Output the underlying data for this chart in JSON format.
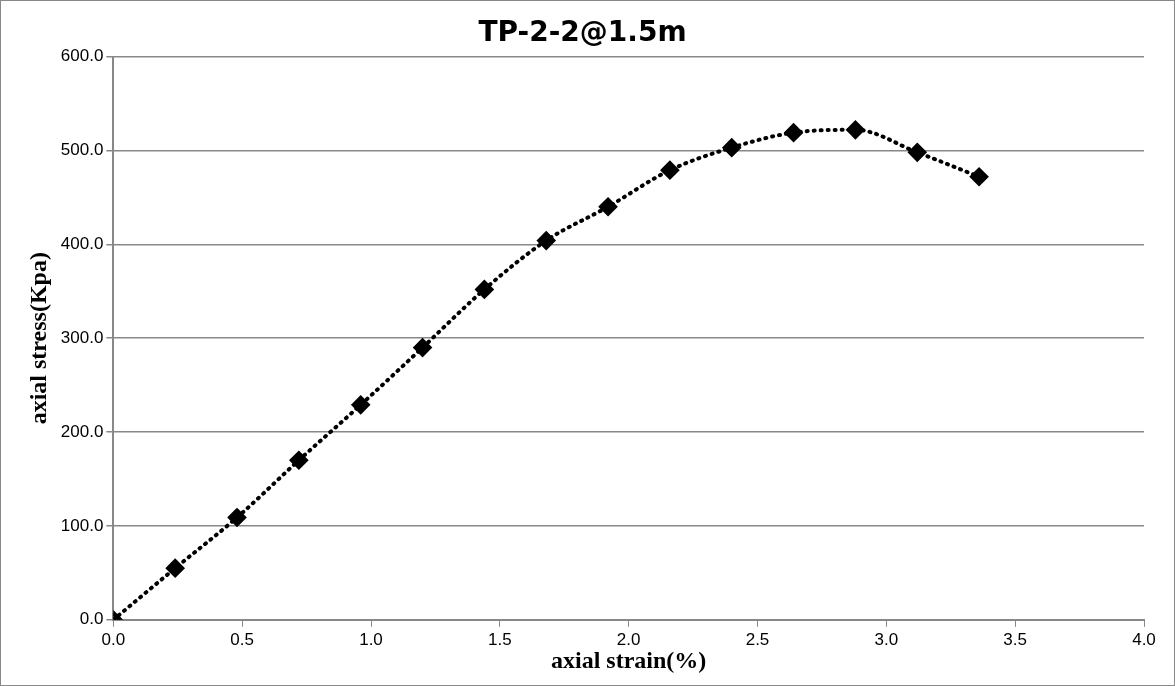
{
  "chart_data": {
    "type": "line",
    "title": "TP-2-2@1.5m",
    "xlabel": "axial strain(%)",
    "ylabel": "axial stress(Kpa)",
    "x": [
      0,
      0.24,
      0.48,
      0.72,
      0.96,
      1.2,
      1.44,
      1.68,
      1.92,
      2.16,
      2.4,
      2.64,
      2.88,
      3.12,
      3.36
    ],
    "series": [
      {
        "color": "#000000",
        "values": [
          0,
          55,
          109,
          170,
          229,
          290,
          352,
          404,
          440,
          479,
          503,
          519,
          522,
          498,
          472
        ]
      }
    ],
    "xlim": [
      0,
      4
    ],
    "xticks": [
      {
        "value": 0,
        "label": "0.0"
      },
      {
        "value": 0.5,
        "label": "0.5"
      },
      {
        "value": 1,
        "label": "1.0"
      },
      {
        "value": 1.5,
        "label": "1.5"
      },
      {
        "value": 2,
        "label": "2.0"
      },
      {
        "value": 2.5,
        "label": "2.5"
      },
      {
        "value": 3,
        "label": "3.0"
      },
      {
        "value": 3.5,
        "label": "3.5"
      },
      {
        "value": 4,
        "label": "4.0"
      }
    ],
    "ylim": [
      0,
      600
    ],
    "yticks": [
      {
        "value": 0,
        "label": "0.0"
      },
      {
        "value": 100,
        "label": "100.0"
      },
      {
        "value": 200,
        "label": "200.0"
      },
      {
        "value": 300,
        "label": "300.0"
      },
      {
        "value": 400,
        "label": "400.0"
      },
      {
        "value": 500,
        "label": "500.0"
      },
      {
        "value": 600,
        "label": "600.0"
      }
    ],
    "grid": "y",
    "legend": false,
    "marker": "diamond",
    "line_style": "dotted"
  }
}
